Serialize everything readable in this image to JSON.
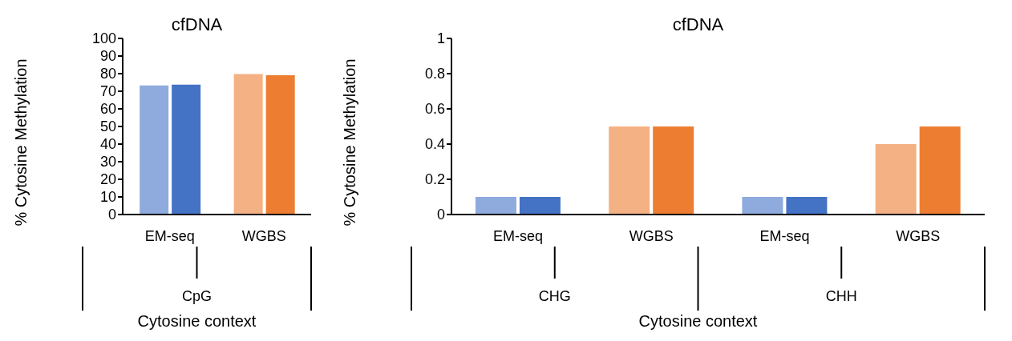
{
  "chart_data": [
    {
      "type": "bar",
      "title": "cfDNA",
      "ylabel": "% Cytosine Methylation",
      "xlabel": "Cytosine context",
      "categories": [
        "EM-seq",
        "WGBS"
      ],
      "annotations": [
        "CpG"
      ],
      "series": [
        {
          "colors": [
            "#8faadc",
            "#f4b183"
          ],
          "values": [
            73.3,
            79.8
          ]
        },
        {
          "colors": [
            "#4472c4",
            "#ed7d31"
          ],
          "values": [
            73.7,
            79.1
          ]
        }
      ],
      "ylim": [
        0,
        100
      ],
      "yticks": [
        0,
        10,
        20,
        30,
        40,
        50,
        60,
        70,
        80,
        90,
        100
      ],
      "grid": false,
      "legend": false
    },
    {
      "type": "bar",
      "title": "cfDNA",
      "ylabel": "% Cytosine Methylation",
      "xlabel": "Cytosine context",
      "categories": [
        "EM-seq",
        "WGBS",
        "EM-seq",
        "WGBS"
      ],
      "annotations": [
        "CHG",
        "CHH"
      ],
      "series": [
        {
          "colors": [
            "#8faadc",
            "#f4b183",
            "#8faadc",
            "#f4b183"
          ],
          "values": [
            0.1,
            0.5,
            0.1,
            0.4
          ]
        },
        {
          "colors": [
            "#4472c4",
            "#ed7d31",
            "#4472c4",
            "#ed7d31"
          ],
          "values": [
            0.1,
            0.5,
            0.1,
            0.5
          ]
        }
      ],
      "ylim": [
        0,
        1
      ],
      "yticks": [
        0,
        0.2,
        0.4,
        0.6,
        0.8,
        1
      ],
      "grid": false,
      "legend": false
    }
  ]
}
